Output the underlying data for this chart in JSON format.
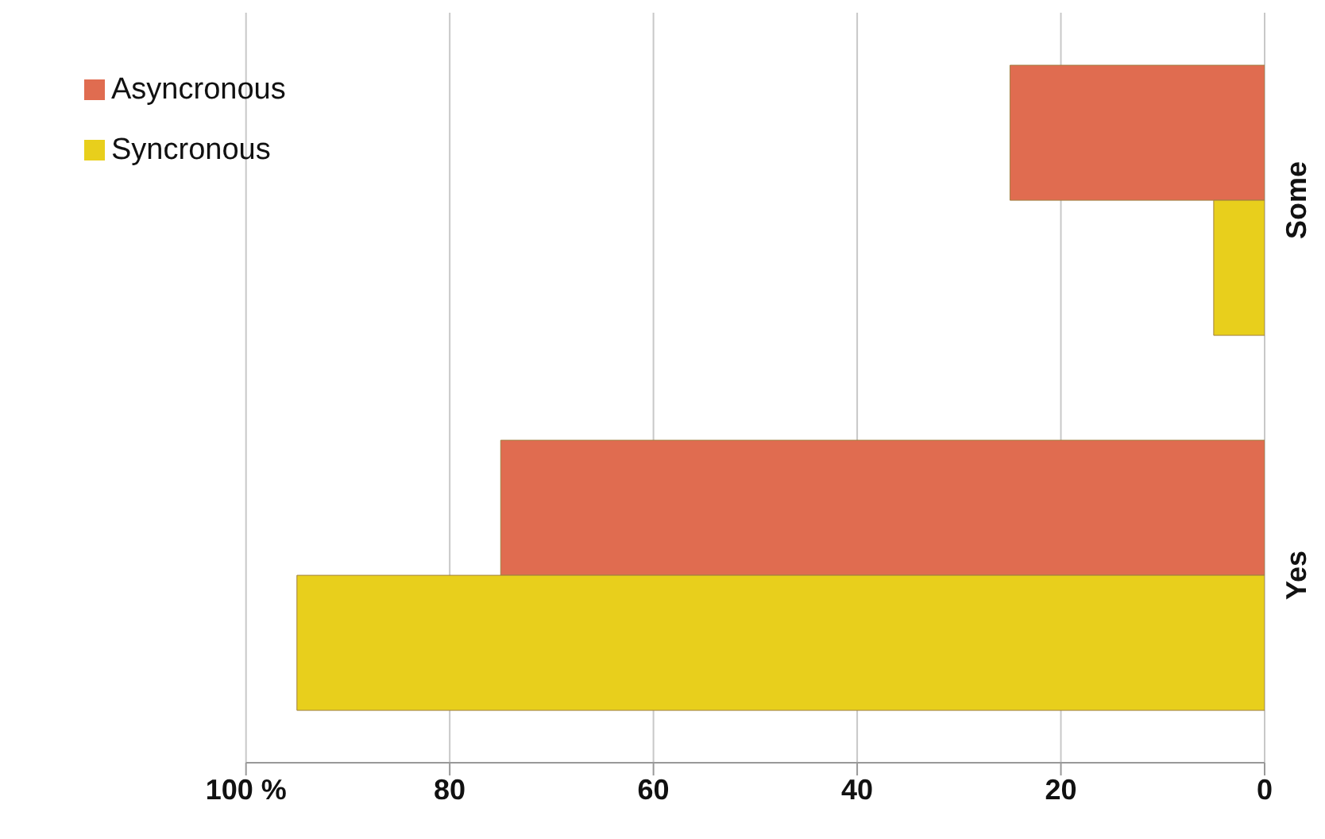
{
  "chart_data": {
    "type": "bar",
    "orientation": "horizontal",
    "categories": [
      "Some",
      "Yes"
    ],
    "series": [
      {
        "name": "Asyncronous",
        "color": "#e06c50",
        "values": [
          25,
          75
        ]
      },
      {
        "name": "Syncronous",
        "color": "#e8cf1c",
        "values": [
          5,
          95
        ]
      }
    ],
    "xlim": [
      100,
      0
    ],
    "xticks": [
      {
        "value": 100,
        "label": "100 %"
      },
      80,
      60,
      40,
      20,
      0
    ],
    "grid": "x",
    "legend": "top left"
  }
}
